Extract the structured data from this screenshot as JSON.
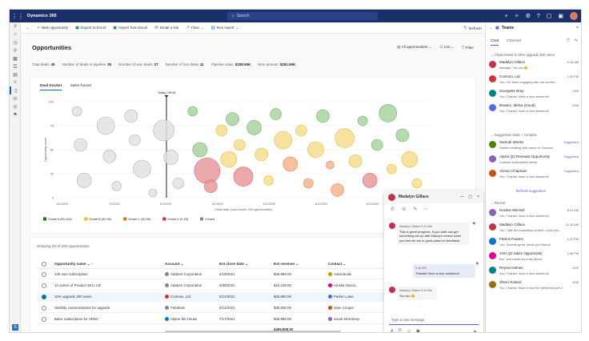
{
  "app": {
    "name": "Dynamics 365",
    "search_placeholder": "Search"
  },
  "commands": [
    {
      "icon": "back-arrow-icon",
      "label": ""
    },
    {
      "icon": "plus-icon",
      "label": "New opportunity"
    },
    {
      "icon": "excel-icon",
      "label": "Export to Excel"
    },
    {
      "icon": "excel-icon",
      "label": "Import from Excel"
    },
    {
      "icon": "mail-icon",
      "label": "Email a link"
    },
    {
      "icon": "flow-icon",
      "label": "Flow"
    },
    {
      "icon": "report-icon",
      "label": "Run report"
    }
  ],
  "refresh_label": "Refresh",
  "page": {
    "title": "Opportunities",
    "view": "All opportunities",
    "list_label": "List",
    "filter_label": "Filter"
  },
  "stats": [
    {
      "label": "Total deals",
      "value": "45"
    },
    {
      "label": "Number of deals in pipeline",
      "value": "35"
    },
    {
      "label": "Number of won deals",
      "value": "27"
    },
    {
      "label": "Number of lost deals",
      "value": "11"
    },
    {
      "label": "Pipeline value",
      "value": "$338.55K"
    },
    {
      "label": "Won amount",
      "value": "$251.55K"
    }
  ],
  "tabs": [
    "Deal tracker",
    "Sales funnel"
  ],
  "chart_data": {
    "type": "scatter",
    "subtype": "bubble",
    "today_label": "Today, 08/18",
    "xlabel": "Close date (most recent 200 opportunities)",
    "ylabel": "Opportunity score",
    "y_ticks": [
      "100",
      "75",
      "50",
      "25",
      "0"
    ],
    "x_ticks": [
      "6/1/2020",
      "7/1/2020",
      "8/1/2020",
      "9/1/2020",
      "10/1/2020",
      "11/1/2020",
      "12/1/2020",
      "1/1/2021"
    ],
    "legend": [
      {
        "name": "Grade A (80-100)",
        "color": "#107c10"
      },
      {
        "name": "Grade B (60-80)",
        "color": "#ffb900"
      },
      {
        "name": "Grade C (30-50)",
        "color": "#f7630c"
      },
      {
        "name": "Grade D (0-29)",
        "color": "#d13438"
      },
      {
        "name": "Closed",
        "color": "#8a8886"
      }
    ]
  },
  "grid": {
    "count_text": "Showing 20 of 200 opportunities",
    "columns": [
      "Opportunity name",
      "Account",
      "Est close date",
      "Est revenue",
      "Contact"
    ],
    "rows": [
      {
        "name": "100 user subscription",
        "account": "Adatum Corporation",
        "date": "2/19/2021",
        "revenue": "$25,890.00",
        "contact": "Anita Boole",
        "selected": false,
        "acolor": "#8a8886",
        "ccolor": "#c19c00"
      },
      {
        "name": "10 orders of Product SKU JJ2",
        "account": "Adatum Corporation",
        "date": "3/30/2021",
        "revenue": "$16,100.00",
        "contact": "Amelia Garcia",
        "selected": false,
        "acolor": "#8a8886",
        "ccolor": "#e3008c"
      },
      {
        "name": "10% upgrade 200 users",
        "account": "Contoso, Ltd.",
        "date": "5/14/2021",
        "revenue": "$25,890.00",
        "contact": "Parker Lowe",
        "selected": true,
        "acolor": "#d13438",
        "ccolor": "#4f6bed"
      },
      {
        "name": "Stability customizations for upgrade",
        "account": "Fabrikam",
        "date": "5/14/2021",
        "revenue": "$30,000.00",
        "contact": "Jane Cooper",
        "selected": false,
        "acolor": "#8a8886",
        "ccolor": "#ca5010"
      },
      {
        "name": "Basic subscription for ARNC",
        "account": "Alpine Ski House",
        "date": "7/17/2021",
        "revenue": "$25,890.00",
        "contact": "Jacob McKinney",
        "selected": false,
        "acolor": "#0078d4",
        "ccolor": "#8764b8"
      }
    ],
    "total": "$499,809.00"
  },
  "teams": {
    "title": "Teams",
    "tabs": [
      "Chat",
      "Channel"
    ],
    "section1": "Chats linked to 10% upgrade 200 users",
    "section2": "Suggested chats + contacts",
    "section3": "Recent",
    "refresh_suggestion": "Refresh suggestion",
    "linked": [
      {
        "name": "Madalyn Gillace",
        "preview": "Madalyn: You too 😊",
        "time": "9:16 AM",
        "color": "#c4314b"
      },
      {
        "name": "Contoso, Ltd.",
        "preview": "You: I've been engaging with our current...",
        "time": "1:20 PM",
        "color": "#d13438"
      },
      {
        "name": "Georgette Bray",
        "preview": "You: Thanks! Have a nice weekend!",
        "time": "2/05",
        "color": "#038387"
      },
      {
        "name": "Bowers, Melva (Good)",
        "preview": "You: Thanks! Have a nice weekend!",
        "time": "2/08",
        "color": "#4f6bed"
      }
    ],
    "suggested": [
      {
        "name": "Samuel Weeks",
        "preview": "Started chatting with owner of Contoso",
        "time": "Suggested",
        "color": "#498205"
      },
      {
        "name": "Alpine Q3 Renewal Opportunity",
        "preview": "Contoso subscription active",
        "time": "Suggested",
        "color": "#8764b8"
      },
      {
        "name": "Alonso Chapman",
        "preview": "You: Thanks! Have a nice weekend!",
        "time": "Suggested",
        "color": "#ca5010"
      }
    ],
    "recent": [
      {
        "name": "Kristine Mitchell",
        "preview": "You: Thanks! Have a nice weekend!",
        "time": "8:21 AM",
        "color": "#8764b8"
      },
      {
        "name": "Madalyn Gillace",
        "preview": "You: I like the marketing content, could you...",
        "time": "11:15 AM",
        "color": "#c4314b"
      },
      {
        "name": "Patrick Powers",
        "preview": "You: Sounds great, thank you Nancy!",
        "time": "1:21 PM",
        "color": "#0078d4"
      },
      {
        "name": "ASH Q3 Sales Opportunity",
        "preview": "Bot: Just made my entry about",
        "time": "1:48 PM",
        "color": "#e3008c"
      },
      {
        "name": "Reyna Holmes",
        "preview": "You: Thanks! Have a nice weekend!",
        "time": "4/05",
        "color": "#038387"
      },
      {
        "name": "Sherri Roland",
        "preview": "You: Thanks! Have a nice the Weekend part 2",
        "time": "4/06",
        "color": "#986f0b"
      }
    ]
  },
  "chat": {
    "title": "Madalyn Gillace",
    "m1_name": "Madalyn Gillace",
    "m1_time": "9:12 AM",
    "m1_text": "This is great progress. If you both can get something set up with Nancy's review when you feel we are in good place for feedback.",
    "m2_time": "9:18 AM",
    "m2_text": "Thanks! Have a nice weekend!",
    "m3_name": "Madalyn Gillace",
    "m3_time": "9:19 AM",
    "m3_text": "You too 😊",
    "placeholder": "Type a new message"
  }
}
